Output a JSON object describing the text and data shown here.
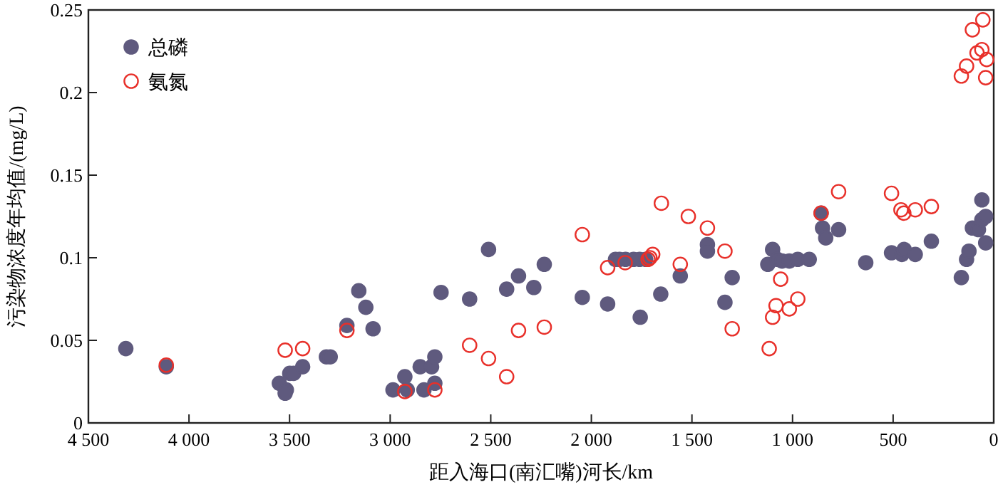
{
  "chart_data": {
    "type": "scatter",
    "xlabel": "距入海口(南汇嘴)河长/km",
    "ylabel": "污染物浓度年均值/(mg/L)",
    "xlim": [
      4500,
      0
    ],
    "ylim": [
      0,
      0.25
    ],
    "xticks": [
      {
        "value": 4500,
        "label": "4 500"
      },
      {
        "value": 4000,
        "label": "4 000"
      },
      {
        "value": 3500,
        "label": "3 500"
      },
      {
        "value": 3000,
        "label": "3 000"
      },
      {
        "value": 2500,
        "label": "2 500"
      },
      {
        "value": 2000,
        "label": "2 000"
      },
      {
        "value": 1500,
        "label": "1 500"
      },
      {
        "value": 1000,
        "label": "1 000"
      },
      500,
      0
    ],
    "yticks": [
      0,
      0.05,
      0.1,
      0.15,
      0.2,
      0.25
    ],
    "grid": false,
    "legend": "top left",
    "marker": "circle",
    "series": [
      {
        "name": "总磷",
        "color": "#5f5a7e",
        "x": [
          4314,
          4113,
          3551,
          3516,
          3522,
          3499,
          3480,
          3435,
          3317,
          3298,
          3215,
          3156,
          3121,
          3085,
          2986,
          2927,
          2915,
          2851,
          2832,
          2794,
          2778,
          2778,
          2747,
          2605,
          2511,
          2421,
          2362,
          2286,
          2234,
          2045,
          1919,
          1880,
          1860,
          1830,
          1790,
          1760,
          1730,
          1757,
          1655,
          1558,
          1423,
          1423,
          1336,
          1300,
          1123,
          1099,
          1076,
          1052,
          1016,
          974,
          917,
          858,
          851,
          835,
          771,
          636,
          508,
          456,
          445,
          390,
          310,
          161,
          135,
          123,
          106,
          76,
          59,
          59,
          40,
          40
        ],
        "values": [
          0.045,
          0.034,
          0.024,
          0.02,
          0.018,
          0.03,
          0.03,
          0.034,
          0.04,
          0.04,
          0.059,
          0.08,
          0.07,
          0.057,
          0.02,
          0.028,
          0.02,
          0.034,
          0.02,
          0.034,
          0.04,
          0.024,
          0.079,
          0.075,
          0.105,
          0.081,
          0.089,
          0.082,
          0.096,
          0.076,
          0.072,
          0.099,
          0.099,
          0.099,
          0.099,
          0.099,
          0.099,
          0.064,
          0.078,
          0.089,
          0.108,
          0.104,
          0.073,
          0.088,
          0.096,
          0.105,
          0.099,
          0.098,
          0.098,
          0.099,
          0.099,
          0.127,
          0.118,
          0.112,
          0.117,
          0.097,
          0.103,
          0.102,
          0.105,
          0.102,
          0.11,
          0.088,
          0.099,
          0.104,
          0.118,
          0.117,
          0.135,
          0.123,
          0.125,
          0.109
        ]
      },
      {
        "name": "氨氮",
        "color": "#e8302a",
        "x": [
          4113,
          3522,
          3435,
          3215,
          2927,
          2778,
          2605,
          2511,
          2421,
          2362,
          2234,
          2045,
          1919,
          1832,
          1718,
          1709,
          1695,
          1652,
          1558,
          1518,
          1423,
          1336,
          1300,
          1116,
          1099,
          1082,
          1059,
          1016,
          974,
          858,
          771,
          508,
          461,
          447,
          390,
          310,
          161,
          135,
          106,
          83,
          59,
          54,
          35,
          40
        ],
        "values": [
          0.035,
          0.044,
          0.045,
          0.056,
          0.019,
          0.02,
          0.047,
          0.039,
          0.028,
          0.056,
          0.058,
          0.114,
          0.094,
          0.097,
          0.099,
          0.1,
          0.102,
          0.133,
          0.096,
          0.125,
          0.118,
          0.104,
          0.057,
          0.045,
          0.064,
          0.071,
          0.087,
          0.069,
          0.075,
          0.127,
          0.14,
          0.139,
          0.129,
          0.127,
          0.129,
          0.131,
          0.21,
          0.216,
          0.238,
          0.224,
          0.226,
          0.244,
          0.22,
          0.209
        ]
      }
    ]
  }
}
